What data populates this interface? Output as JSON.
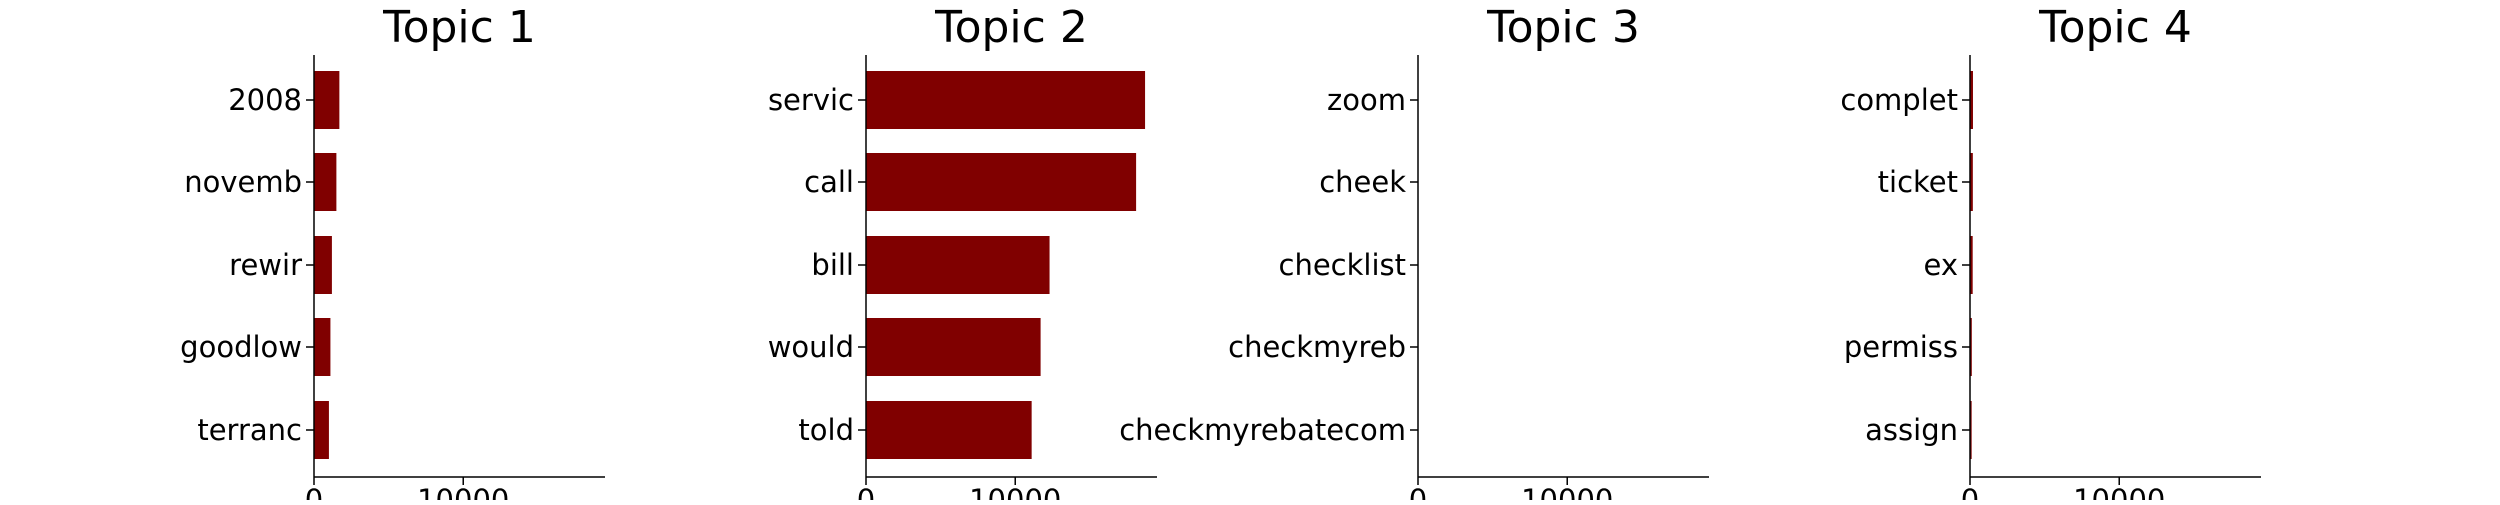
{
  "chart_data": [
    {
      "type": "bar",
      "orientation": "horizontal",
      "title": "Topic 1",
      "categories": [
        "2008",
        "novemb",
        "rewir",
        "goodlow",
        "terranc"
      ],
      "values": [
        1700,
        1500,
        1200,
        1100,
        1000
      ],
      "xlim": [
        0,
        19500
      ],
      "xticks": [
        "0",
        "10000"
      ],
      "xlabel": "",
      "ylabel": "",
      "grid": false,
      "legend": "none"
    },
    {
      "type": "bar",
      "orientation": "horizontal",
      "title": "Topic 2",
      "categories": [
        "servic",
        "call",
        "bill",
        "would",
        "told"
      ],
      "values": [
        18700,
        18100,
        12300,
        11700,
        11100
      ],
      "xlim": [
        0,
        19500
      ],
      "xticks": [
        "0",
        "10000"
      ],
      "xlabel": "",
      "ylabel": "",
      "grid": false,
      "legend": "none"
    },
    {
      "type": "bar",
      "orientation": "horizontal",
      "title": "Topic 3",
      "categories": [
        "zoom",
        "cheek",
        "checklist",
        "checkmyreb",
        "checkmyrebatecom"
      ],
      "values": [
        0,
        0,
        0,
        0,
        0
      ],
      "xlim": [
        0,
        19500
      ],
      "xticks": [
        "0",
        "10000"
      ],
      "xlabel": "",
      "ylabel": "",
      "grid": false,
      "legend": "none"
    },
    {
      "type": "bar",
      "orientation": "horizontal",
      "title": "Topic 4",
      "categories": [
        "complet",
        "ticket",
        "ex",
        "permiss",
        "assign"
      ],
      "values": [
        200,
        190,
        180,
        120,
        110
      ],
      "xlim": [
        0,
        19500
      ],
      "xticks": [
        "0",
        "10000"
      ],
      "xlabel": "",
      "ylabel": "",
      "grid": false,
      "legend": "none"
    }
  ],
  "colors": {
    "bar": "#800000",
    "axis": "#000000"
  }
}
